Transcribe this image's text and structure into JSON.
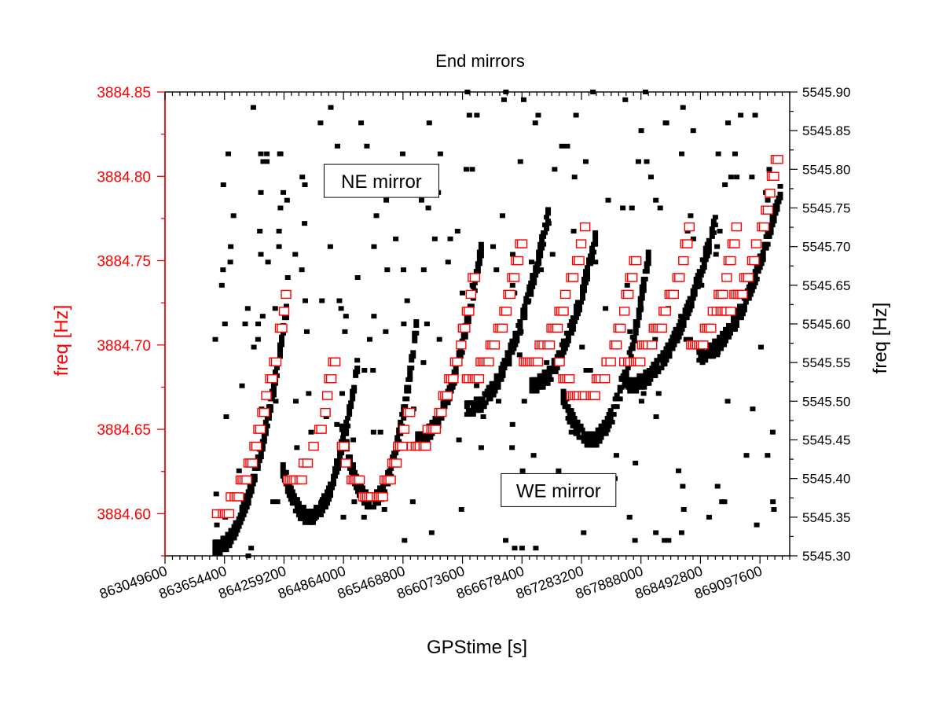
{
  "chart_data": {
    "type": "scatter",
    "title": "End mirrors",
    "xlabel": "GPStime [s]",
    "ylabel_left": "freq [Hz]",
    "ylabel_right": "freq [Hz]",
    "xlim": [
      863049600,
      869400000
    ],
    "ylim_left": [
      3884.575,
      3884.85
    ],
    "ylim_right": [
      5545.3,
      5545.9
    ],
    "x_ticks": [
      863049600,
      863654400,
      864259200,
      864864000,
      865468800,
      866073600,
      866678400,
      867283200,
      867888000,
      868492800,
      869097600
    ],
    "x_tick_labels": [
      "863049600",
      "863654400",
      "864259200",
      "864864000",
      "865468800",
      "866073600",
      "866678400",
      "867283200",
      "867888000",
      "868492800",
      "869097600"
    ],
    "y_left_ticks": [
      3884.6,
      3884.65,
      3884.7,
      3884.75,
      3884.8,
      3884.85
    ],
    "y_left_tick_labels": [
      "3884.60",
      "3884.65",
      "3884.70",
      "3884.75",
      "3884.80",
      "3884.85"
    ],
    "y_right_ticks": [
      5545.3,
      5545.35,
      5545.4,
      5545.45,
      5545.5,
      5545.55,
      5545.6,
      5545.65,
      5545.7,
      5545.75,
      5545.8,
      5545.85,
      5545.9
    ],
    "y_right_tick_labels": [
      "5545.30",
      "5545.35",
      "5545.40",
      "5545.45",
      "5545.50",
      "5545.55",
      "5545.60",
      "5545.65",
      "5545.70",
      "5545.75",
      "5545.80",
      "5545.85",
      "5545.90"
    ],
    "annotations": [
      {
        "text": "NE mirror",
        "x": 865250000,
        "y_right": 5545.785
      },
      {
        "text": "WE mirror",
        "x": 867050000,
        "y_right": 5545.385
      }
    ],
    "series": [
      {
        "axis": "left",
        "color": "#ff0000",
        "marker": "open-square",
        "arcs": [
          {
            "t0": 863560000,
            "t1": 864320000,
            "tmin": 863560000,
            "fmin": 3884.6,
            "fmax": 3884.74
          },
          {
            "t0": 864300000,
            "t1": 864800000,
            "tmin": 864330000,
            "fmin": 3884.62,
            "fmax": 3884.7
          },
          {
            "t0": 864850000,
            "t1": 865560000,
            "tmin": 865150000,
            "fmin": 3884.61,
            "fmax": 3884.67
          },
          {
            "t0": 865560000,
            "t1": 866220000,
            "tmin": 865560000,
            "fmin": 3884.64,
            "fmax": 3884.75
          },
          {
            "t0": 866120000,
            "t1": 866700000,
            "tmin": 866120000,
            "fmin": 3884.68,
            "fmax": 3884.77
          },
          {
            "t0": 866700000,
            "t1": 867360000,
            "tmin": 866700000,
            "fmin": 3884.69,
            "fmax": 3884.78
          },
          {
            "t0": 867060000,
            "t1": 867860000,
            "tmin": 867300000,
            "fmin": 3884.67,
            "fmax": 3884.76
          },
          {
            "t0": 867720000,
            "t1": 868400000,
            "tmin": 867720000,
            "fmin": 3884.69,
            "fmax": 3884.77
          },
          {
            "t0": 868400000,
            "t1": 868900000,
            "tmin": 868400000,
            "fmin": 3884.7,
            "fmax": 3884.78
          },
          {
            "t0": 868700000,
            "t1": 869300000,
            "tmin": 868700000,
            "fmin": 3884.72,
            "fmax": 3884.82
          }
        ]
      },
      {
        "axis": "right",
        "color": "#000000",
        "marker": "filled-square",
        "arcs": [
          {
            "t0": 863560000,
            "t1": 864300000,
            "tmin": 863560000,
            "fmin": 5545.31,
            "fmax": 5545.63
          },
          {
            "t0": 864250000,
            "t1": 865020000,
            "tmin": 864520000,
            "fmin": 5545.35,
            "fmax": 5545.56
          },
          {
            "t0": 864850000,
            "t1": 865620000,
            "tmin": 865150000,
            "fmin": 5545.37,
            "fmax": 5545.61
          },
          {
            "t0": 865620000,
            "t1": 866280000,
            "tmin": 865620000,
            "fmin": 5545.45,
            "fmax": 5545.71
          },
          {
            "t0": 866120000,
            "t1": 866960000,
            "tmin": 866120000,
            "fmin": 5545.49,
            "fmax": 5545.75
          },
          {
            "t0": 866780000,
            "t1": 867440000,
            "tmin": 866780000,
            "fmin": 5545.52,
            "fmax": 5545.72
          },
          {
            "t0": 867100000,
            "t1": 867980000,
            "tmin": 867380000,
            "fmin": 5545.45,
            "fmax": 5545.7
          },
          {
            "t0": 867760000,
            "t1": 868660000,
            "tmin": 867760000,
            "fmin": 5545.52,
            "fmax": 5545.74
          },
          {
            "t0": 868480000,
            "t1": 869320000,
            "tmin": 868480000,
            "fmin": 5545.56,
            "fmax": 5545.78
          }
        ]
      }
    ]
  }
}
